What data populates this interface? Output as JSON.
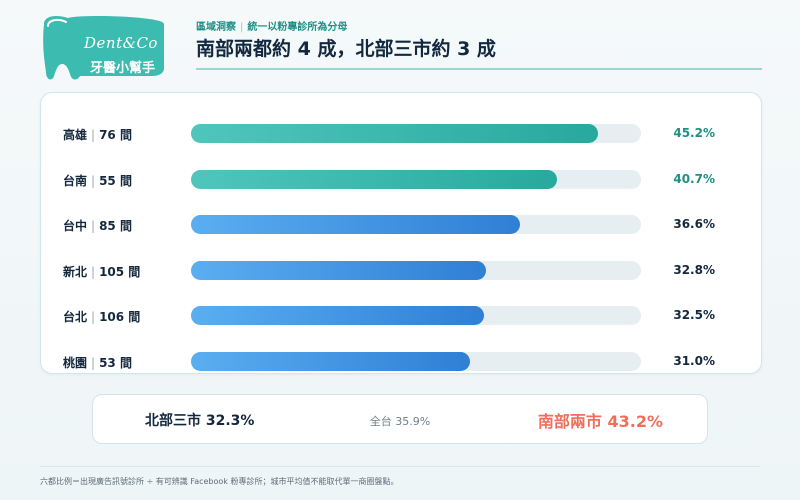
{
  "brand": {
    "script": "Dent&Co",
    "name": "牙醫小幫手",
    "color": "#3cbcb0"
  },
  "header": {
    "crumb_section": "區域洞察",
    "crumb_note": "統一以粉專診所為分母",
    "headline": "南部兩都約 4 成，北部三市約 3 成"
  },
  "chart_data": {
    "type": "bar",
    "orientation": "horizontal",
    "categories": [
      "高雄",
      "台南",
      "台中",
      "新北",
      "台北",
      "桃園"
    ],
    "counts": [
      "76 間",
      "55 間",
      "85 間",
      "105 間",
      "106 間",
      "53 間"
    ],
    "values": [
      45.2,
      40.7,
      36.6,
      32.8,
      32.5,
      31.0
    ],
    "value_labels": [
      "45.2%",
      "40.7%",
      "36.6%",
      "32.8%",
      "32.5%",
      "31.0%"
    ],
    "groups": [
      "south",
      "south",
      "central",
      "north",
      "north",
      "north"
    ],
    "xlim": [
      0,
      50
    ],
    "colors": {
      "south_bar": "#2fb0a4",
      "other_bar": "#3a8ce0",
      "south_label": "#1f8f86",
      "other_label": "#14283d"
    }
  },
  "summary": {
    "north": "北部三市 32.3%",
    "all": "全台 35.9%",
    "south": "南部兩市 43.2%"
  },
  "footnote": "六都比例＝出現廣告訊號診所 ÷ 有可辨識 Facebook 粉專診所；城市平均值不能取代單一商圈盤點。"
}
